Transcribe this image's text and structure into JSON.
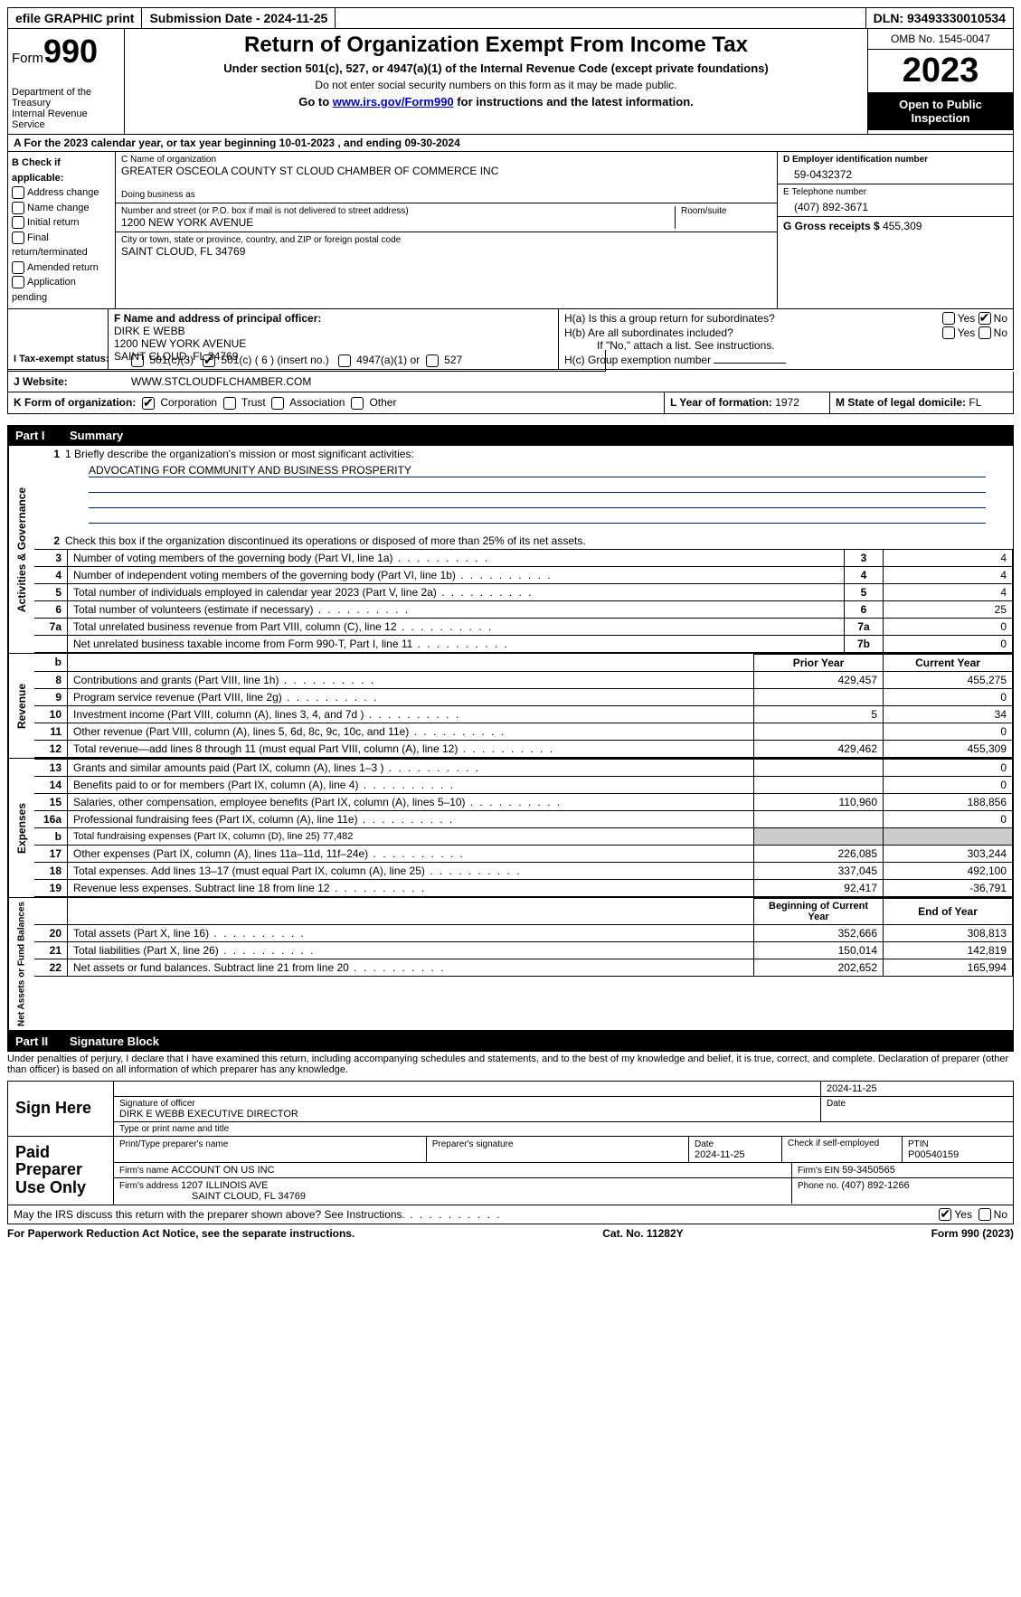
{
  "colors": {
    "black": "#000000",
    "white": "#ffffff",
    "link": "#0000cc",
    "shade": "#cccccc",
    "missionline": "#001e80"
  },
  "topbar": {
    "efile": "efile GRAPHIC print",
    "submission": "Submission Date - 2024-11-25",
    "dln": "DLN: 93493330010534"
  },
  "header": {
    "form_label": "Form",
    "form_num": "990",
    "dept": "Department of the Treasury",
    "irs": "Internal Revenue Service",
    "title": "Return of Organization Exempt From Income Tax",
    "subtitle": "Under section 501(c), 527, or 4947(a)(1) of the Internal Revenue Code (except private foundations)",
    "ssn_note": "Do not enter social security numbers on this form as it may be made public.",
    "goto": "Go to ",
    "goto_link": "www.irs.gov/Form990",
    "goto_after": " for instructions and the latest information.",
    "omb": "OMB No. 1545-0047",
    "year": "2023",
    "open": "Open to Public Inspection"
  },
  "sectionA": "A  For the 2023 calendar year, or tax year beginning 10-01-2023    , and ending 09-30-2024",
  "boxB": {
    "label": "B Check if applicable:",
    "items": [
      "Address change",
      "Name change",
      "Initial return",
      "Final return/terminated",
      "Amended return",
      "Application pending"
    ]
  },
  "boxC": {
    "name_label": "C Name of organization",
    "name": "GREATER OSCEOLA COUNTY ST CLOUD CHAMBER OF COMMERCE INC",
    "dba_label": "Doing business as",
    "addr_label": "Number and street (or P.O. box if mail is not delivered to street address)",
    "room_label": "Room/suite",
    "addr": "1200 NEW YORK AVENUE",
    "city_label": "City or town, state or province, country, and ZIP or foreign postal code",
    "city": "SAINT CLOUD, FL  34769"
  },
  "boxD": {
    "label": "D Employer identification number",
    "val": "59-0432372"
  },
  "boxE": {
    "label": "E Telephone number",
    "val": "(407) 892-3671"
  },
  "boxG": {
    "label": "G Gross receipts $ ",
    "val": "455,309"
  },
  "boxF": {
    "label": "F  Name and address of principal officer:",
    "name": "DIRK E WEBB",
    "addr": "1200 NEW YORK AVENUE",
    "city": "SAINT CLOUD, FL  34769"
  },
  "boxH": {
    "ha": "H(a)  Is this a group return for subordinates?",
    "hb": "H(b)  Are all subordinates included?",
    "hb_note": "If \"No,\" attach a list. See instructions.",
    "hc": "H(c)  Group exemption number ",
    "yes": "Yes",
    "no": "No"
  },
  "statusI": {
    "label": "I    Tax-exempt status:",
    "opts": [
      "501(c)(3)",
      "501(c) ( 6 ) (insert no.)",
      "4947(a)(1) or",
      "527"
    ],
    "checked_idx": 1
  },
  "websiteJ": {
    "label": "J     Website: ",
    "val": "WWW.STCLOUDFLCHAMBER.COM"
  },
  "formK": {
    "label": "K Form of organization:",
    "opts": [
      "Corporation",
      "Trust",
      "Association",
      "Other"
    ],
    "checked_idx": 0
  },
  "boxL": {
    "label": "L Year of formation: ",
    "val": "1972"
  },
  "boxM": {
    "label": "M State of legal domicile: ",
    "val": "FL"
  },
  "partI": {
    "num": "Part I",
    "title": "Summary"
  },
  "mission": {
    "line1_label": "1    Briefly describe the organization's mission or most significant activities:",
    "text": "ADVOCATING FOR COMMUNITY AND BUSINESS PROSPERITY"
  },
  "gov": {
    "tab": "Activities & Governance",
    "line2": "Check this box      if the organization discontinued its operations or disposed of more than 25% of its net assets.",
    "rows": [
      {
        "n": "3",
        "t": "Number of voting members of the governing body (Part VI, line 1a)",
        "b": "3",
        "v": "4"
      },
      {
        "n": "4",
        "t": "Number of independent voting members of the governing body (Part VI, line 1b)",
        "b": "4",
        "v": "4"
      },
      {
        "n": "5",
        "t": "Total number of individuals employed in calendar year 2023 (Part V, line 2a)",
        "b": "5",
        "v": "4"
      },
      {
        "n": "6",
        "t": "Total number of volunteers (estimate if necessary)",
        "b": "6",
        "v": "25"
      },
      {
        "n": "7a",
        "t": "Total unrelated business revenue from Part VIII, column (C), line 12",
        "b": "7a",
        "v": "0"
      },
      {
        "n": "",
        "t": "Net unrelated business taxable income from Form 990-T, Part I, line 11",
        "b": "7b",
        "v": "0"
      }
    ]
  },
  "rev": {
    "tab": "Revenue",
    "header_b": "b",
    "col_prior": "Prior Year",
    "col_current": "Current Year",
    "rows": [
      {
        "n": "8",
        "t": "Contributions and grants (Part VIII, line 1h)",
        "p": "429,457",
        "c": "455,275"
      },
      {
        "n": "9",
        "t": "Program service revenue (Part VIII, line 2g)",
        "p": "",
        "c": "0"
      },
      {
        "n": "10",
        "t": "Investment income (Part VIII, column (A), lines 3, 4, and 7d )",
        "p": "5",
        "c": "34"
      },
      {
        "n": "11",
        "t": "Other revenue (Part VIII, column (A), lines 5, 6d, 8c, 9c, 10c, and 11e)",
        "p": "",
        "c": "0"
      },
      {
        "n": "12",
        "t": "Total revenue—add lines 8 through 11 (must equal Part VIII, column (A), line 12)",
        "p": "429,462",
        "c": "455,309"
      }
    ]
  },
  "exp": {
    "tab": "Expenses",
    "rows": [
      {
        "n": "13",
        "t": "Grants and similar amounts paid (Part IX, column (A), lines 1–3 )",
        "p": "",
        "c": "0"
      },
      {
        "n": "14",
        "t": "Benefits paid to or for members (Part IX, column (A), line 4)",
        "p": "",
        "c": "0"
      },
      {
        "n": "15",
        "t": "Salaries, other compensation, employee benefits (Part IX, column (A), lines 5–10)",
        "p": "110,960",
        "c": "188,856"
      },
      {
        "n": "16a",
        "t": "Professional fundraising fees (Part IX, column (A), line 11e)",
        "p": "",
        "c": "0"
      },
      {
        "n": "b",
        "t": "Total fundraising expenses (Part IX, column (D), line 25) 77,482",
        "shade": true
      },
      {
        "n": "17",
        "t": "Other expenses (Part IX, column (A), lines 11a–11d, 11f–24e)",
        "p": "226,085",
        "c": "303,244"
      },
      {
        "n": "18",
        "t": "Total expenses. Add lines 13–17 (must equal Part IX, column (A), line 25)",
        "p": "337,045",
        "c": "492,100"
      },
      {
        "n": "19",
        "t": "Revenue less expenses. Subtract line 18 from line 12",
        "p": "92,417",
        "c": "-36,791"
      }
    ]
  },
  "net": {
    "tab": "Net Assets or Fund Balances",
    "col_begin": "Beginning of Current Year",
    "col_end": "End of Year",
    "rows": [
      {
        "n": "20",
        "t": "Total assets (Part X, line 16)",
        "p": "352,666",
        "c": "308,813"
      },
      {
        "n": "21",
        "t": "Total liabilities (Part X, line 26)",
        "p": "150,014",
        "c": "142,819"
      },
      {
        "n": "22",
        "t": "Net assets or fund balances. Subtract line 21 from line 20",
        "p": "202,652",
        "c": "165,994"
      }
    ]
  },
  "partII": {
    "num": "Part II",
    "title": "Signature Block"
  },
  "penalty": "Under penalties of perjury, I declare that I have examined this return, including accompanying schedules and statements, and to the best of my knowledge and belief, it is true, correct, and complete. Declaration of preparer (other than officer) is based on all information of which preparer has any knowledge.",
  "sign": {
    "label": "Sign Here",
    "date": "2024-11-25",
    "sig_label": "Signature of officer",
    "date_label": "Date",
    "name": "DIRK E WEBB  EXECUTIVE DIRECTOR",
    "name_label": "Type or print name and title"
  },
  "paid": {
    "label": "Paid Preparer Use Only",
    "print_label": "Print/Type preparer's name",
    "sig_label": "Preparer's signature",
    "date_label": "Date",
    "date": "2024-11-25",
    "check_label": "Check         if self-employed",
    "ptin_label": "PTIN",
    "ptin": "P00540159",
    "firm_name_label": "Firm's name    ",
    "firm_name": "ACCOUNT ON US INC",
    "firm_ein_label": "Firm's EIN  ",
    "firm_ein": "59-3450565",
    "firm_addr_label": "Firm's address ",
    "firm_addr1": "1207 ILLINOIS AVE",
    "firm_addr2": "SAINT CLOUD, FL  34769",
    "phone_label": "Phone no. ",
    "phone": "(407) 892-1266"
  },
  "discuss": {
    "text": "May the IRS discuss this return with the preparer shown above? See Instructions.",
    "yes": "Yes",
    "no": "No"
  },
  "footer": {
    "left": "For Paperwork Reduction Act Notice, see the separate instructions.",
    "mid": "Cat. No. 11282Y",
    "right_form": "Form ",
    "right_num": "990",
    "right_year": " (2023)"
  }
}
